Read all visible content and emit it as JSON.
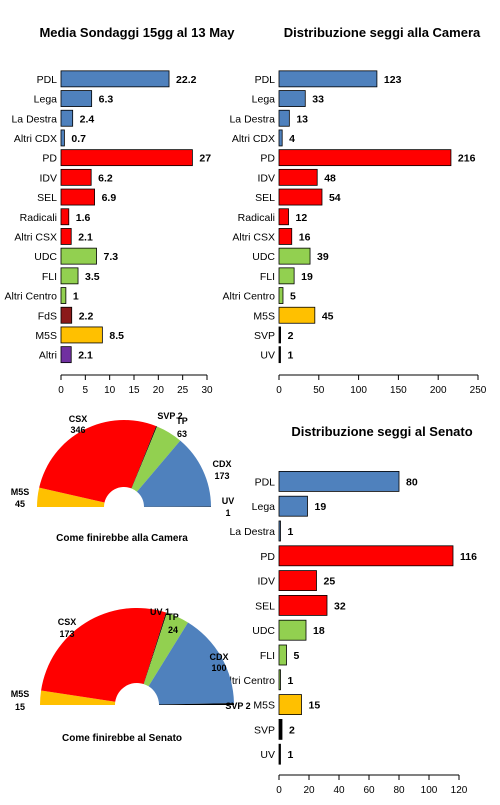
{
  "colors": {
    "cdx": "#4f81bd",
    "csx": "#ff0000",
    "centro": "#92d050",
    "fds": "#8b1a1a",
    "m5s": "#ffc000",
    "altri": "#7030a0",
    "uv": "#000000",
    "svp": "#000000"
  },
  "chart_data": [
    {
      "id": "sondaggi",
      "type": "bar",
      "orientation": "horizontal",
      "title": "Media Sondaggi 15gg al 13 May",
      "categories": [
        "PDL",
        "Lega",
        "La Destra",
        "Altri CDX",
        "PD",
        "IDV",
        "SEL",
        "Radicali",
        "Altri CSX",
        "UDC",
        "FLI",
        "Altri Centro",
        "FdS",
        "M5S",
        "Altri"
      ],
      "values": [
        22.2,
        6.3,
        2.4,
        0.7,
        27,
        6.2,
        6.9,
        1.6,
        2.1,
        7.3,
        3.5,
        1,
        2.2,
        8.5,
        2.1
      ],
      "bar_groups": [
        "cdx",
        "cdx",
        "cdx",
        "cdx",
        "csx",
        "csx",
        "csx",
        "csx",
        "csx",
        "centro",
        "centro",
        "centro",
        "fds",
        "m5s",
        "altri"
      ],
      "xlim": [
        0,
        30
      ],
      "xticks": [
        0,
        5,
        10,
        15,
        20,
        25,
        30
      ]
    },
    {
      "id": "camera",
      "type": "bar",
      "orientation": "horizontal",
      "title": "Distribuzione seggi alla Camera",
      "categories": [
        "PDL",
        "Lega",
        "La Destra",
        "Altri CDX",
        "PD",
        "IDV",
        "SEL",
        "Radicali",
        "Altri CSX",
        "UDC",
        "FLI",
        "Altri Centro",
        "M5S",
        "SVP",
        "UV"
      ],
      "values": [
        123,
        33,
        13,
        4,
        216,
        48,
        54,
        12,
        16,
        39,
        19,
        5,
        45,
        2,
        1
      ],
      "bar_groups": [
        "cdx",
        "cdx",
        "cdx",
        "cdx",
        "csx",
        "csx",
        "csx",
        "csx",
        "csx",
        "centro",
        "centro",
        "centro",
        "m5s",
        "svp",
        "uv"
      ],
      "xlim": [
        0,
        250
      ],
      "xticks": [
        0,
        50,
        100,
        150,
        200,
        250
      ]
    },
    {
      "id": "senato",
      "type": "bar",
      "orientation": "horizontal",
      "title": "Distribuzione seggi al Senato",
      "categories": [
        "PDL",
        "Lega",
        "La Destra",
        "PD",
        "IDV",
        "SEL",
        "UDC",
        "FLI",
        "Altri Centro",
        "M5S",
        "SVP",
        "UV"
      ],
      "values": [
        80,
        19,
        1,
        116,
        25,
        32,
        18,
        5,
        1,
        15,
        2,
        1
      ],
      "bar_groups": [
        "cdx",
        "cdx",
        "cdx",
        "csx",
        "csx",
        "csx",
        "centro",
        "centro",
        "centro",
        "m5s",
        "svp",
        "uv"
      ],
      "xlim": [
        0,
        120
      ],
      "xticks": [
        0,
        20,
        40,
        60,
        80,
        100,
        120
      ]
    },
    {
      "id": "emiciclo-camera",
      "type": "pie",
      "subtype": "semicircle",
      "caption": "Come finirebbe alla Camera",
      "slices": [
        {
          "name": "M5S",
          "value": 45,
          "group": "m5s"
        },
        {
          "name": "CSX",
          "value": 346,
          "group": "csx"
        },
        {
          "name": "SVP",
          "value": 2,
          "group": "svp"
        },
        {
          "name": "TP",
          "value": 63,
          "group": "centro"
        },
        {
          "name": "CDX",
          "value": 173,
          "group": "cdx"
        },
        {
          "name": "UV",
          "value": 1,
          "group": "uv"
        }
      ]
    },
    {
      "id": "emiciclo-senato",
      "type": "pie",
      "subtype": "semicircle",
      "caption": "Come finirebbe al Senato",
      "slices": [
        {
          "name": "M5S",
          "value": 15,
          "group": "m5s"
        },
        {
          "name": "CSX",
          "value": 173,
          "group": "csx"
        },
        {
          "name": "UV",
          "value": 1,
          "group": "uv"
        },
        {
          "name": "TP",
          "value": 24,
          "group": "centro"
        },
        {
          "name": "CDX",
          "value": 100,
          "group": "cdx"
        },
        {
          "name": "SVP",
          "value": 2,
          "group": "svp"
        }
      ]
    }
  ]
}
